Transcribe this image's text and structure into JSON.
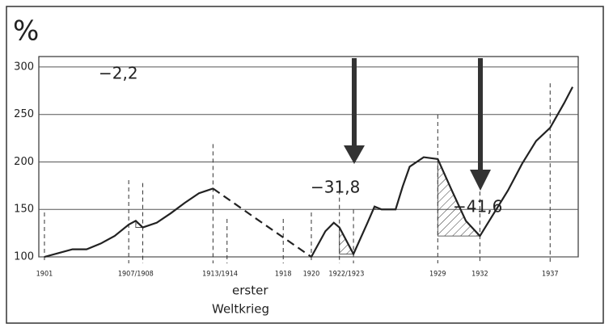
{
  "chart_data": {
    "type": "line",
    "title": "%",
    "x": [
      1901,
      1902,
      1903,
      1904,
      1905,
      1906,
      1907,
      1907.5,
      1908,
      1909,
      1910,
      1911,
      1912,
      1913,
      1916,
      1920,
      1921,
      1921.6,
      1922,
      1922.5,
      1923,
      1924,
      1924.5,
      1925,
      1926,
      1926.5,
      1927,
      1928,
      1929,
      1930,
      1931,
      1932,
      1933,
      1934,
      1935,
      1936,
      1937,
      1938,
      1938.6
    ],
    "series": [
      {
        "color": "#222",
        "values": [
          100,
          104,
          108,
          108,
          114,
          122,
          134,
          138,
          131,
          136,
          146,
          157,
          167,
          172,
          null,
          100,
          127,
          136,
          131,
          117,
          103,
          136,
          153,
          150,
          150,
          174,
          195,
          205,
          203,
          170,
          138,
          122,
          146,
          170,
          198,
          222,
          236,
          262,
          279
        ]
      },
      {
        "color": "#222",
        "dash": true,
        "values": [
          null,
          null,
          null,
          null,
          null,
          null,
          null,
          null,
          null,
          null,
          null,
          null,
          null,
          172,
          141,
          100,
          null,
          null,
          null,
          null,
          null,
          null,
          null,
          null,
          null,
          null,
          null,
          null,
          null,
          null,
          null,
          null,
          null,
          null,
          null,
          null,
          null,
          null,
          null
        ]
      }
    ],
    "xlim": [
      1900.6,
      1939
    ],
    "ylim": [
      100,
      311
    ],
    "yticks": [
      100,
      150,
      200,
      250,
      300
    ],
    "xticks": [
      1901,
      {
        "value": 1907.5,
        "label": "1907/1908"
      },
      {
        "value": 1913.5,
        "label": "1913/1914"
      },
      1918,
      1920,
      {
        "value": 1922.5,
        "label": "1922/1923"
      },
      1929,
      1932,
      1937
    ],
    "vlines": [
      1901,
      1907,
      1908,
      1913,
      1914,
      1918,
      1920,
      1922,
      1923,
      1929,
      1932,
      1937
    ],
    "hatched": [
      [
        1907.5,
        1908
      ],
      [
        1922,
        1923
      ],
      [
        1924.5,
        1926
      ],
      [
        1929,
        1932
      ]
    ],
    "grid": true,
    "annotations": [
      "−2,2",
      "−31,8",
      "−41,6",
      "erster",
      "Weltkrieg"
    ]
  }
}
